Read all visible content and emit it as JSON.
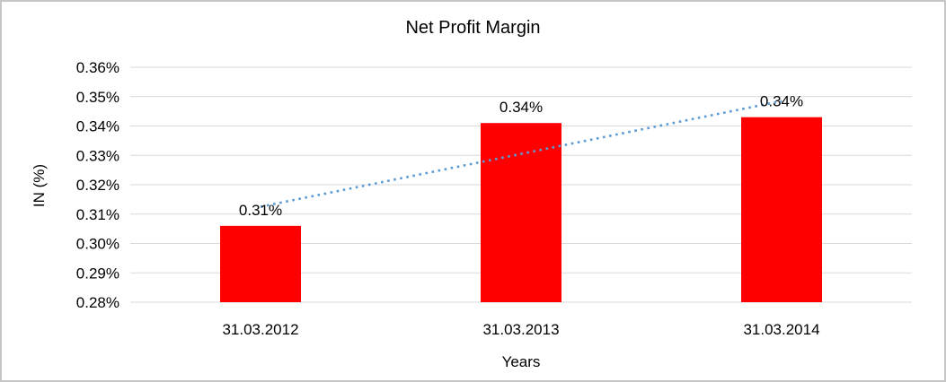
{
  "chart_data": {
    "type": "bar",
    "title": "Net Profit Margin",
    "xlabel": "Years",
    "ylabel": "IN (%)",
    "categories": [
      "31.03.2012",
      "31.03.2013",
      "31.03.2014"
    ],
    "values": [
      0.306,
      0.341,
      0.343
    ],
    "data_labels": [
      "0.31%",
      "0.34%",
      "0.34%"
    ],
    "ylim": [
      0.28,
      0.36
    ],
    "y_ticks": [
      {
        "value": 0.36,
        "label": "0.36%"
      },
      {
        "value": 0.35,
        "label": "0.35%"
      },
      {
        "value": 0.34,
        "label": "0.34%"
      },
      {
        "value": 0.33,
        "label": "0.33%"
      },
      {
        "value": 0.32,
        "label": "0.32%"
      },
      {
        "value": 0.31,
        "label": "0.31%"
      },
      {
        "value": 0.3,
        "label": "0.30%"
      },
      {
        "value": 0.29,
        "label": "0.29%"
      },
      {
        "value": 0.28,
        "label": "0.28%"
      }
    ],
    "grid": true,
    "legend": "none",
    "colors": {
      "bar": "#ff0000",
      "gridline": "#d9d9d9",
      "text": "#000000",
      "trendline": "#5b9bd5",
      "frame_border": "#c6c6c6"
    },
    "trendline": {
      "style": "dotted",
      "start_value": 0.3125,
      "end_value": 0.3485
    }
  }
}
